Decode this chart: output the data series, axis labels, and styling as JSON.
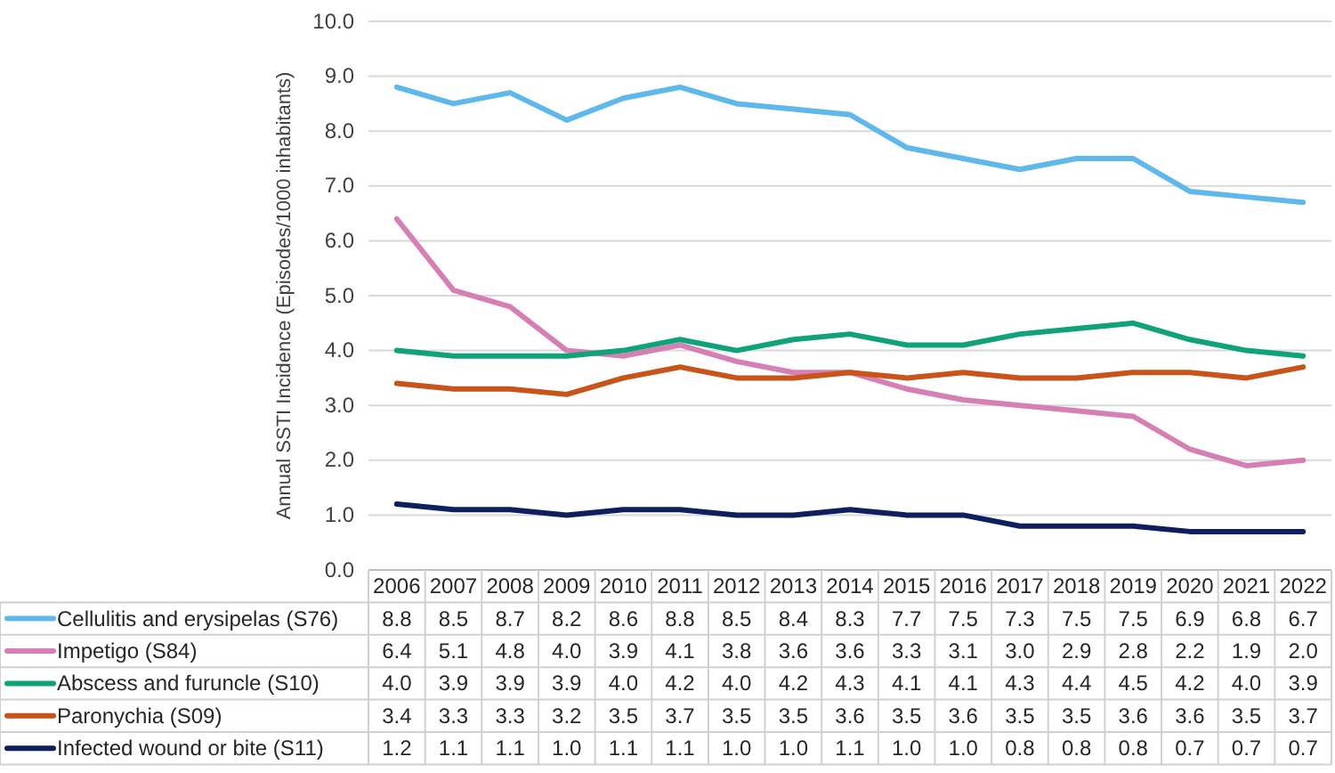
{
  "chart_data": {
    "type": "line",
    "ylabel": "Annual SSTI Incidence (Episodes/1000 inhabitants)",
    "categories": [
      "2006",
      "2007",
      "2008",
      "2009",
      "2010",
      "2011",
      "2012",
      "2013",
      "2014",
      "2015",
      "2016",
      "2017",
      "2018",
      "2019",
      "2020",
      "2021",
      "2022"
    ],
    "ylim": [
      0,
      10
    ],
    "yticks": [
      {
        "value": 0,
        "label": "0.0"
      },
      {
        "value": 1,
        "label": "1.0"
      },
      {
        "value": 2,
        "label": "2.0"
      },
      {
        "value": 3,
        "label": "3.0"
      },
      {
        "value": 4,
        "label": "4.0"
      },
      {
        "value": 5,
        "label": "5.0"
      },
      {
        "value": 6,
        "label": "6.0"
      },
      {
        "value": 7,
        "label": "7.0"
      },
      {
        "value": 8,
        "label": "8.0"
      },
      {
        "value": 9,
        "label": "9.0"
      },
      {
        "value": 10,
        "label": "10.0"
      }
    ],
    "grid": "y",
    "legend": "bottom",
    "line_style": "solid",
    "marker": "none",
    "series": [
      {
        "name": "Cellulitis and erysipelas (S76)",
        "color": "#5eb8ec",
        "values": [
          8.8,
          8.5,
          8.7,
          8.2,
          8.6,
          8.8,
          8.5,
          8.4,
          8.3,
          7.7,
          7.5,
          7.3,
          7.5,
          7.5,
          6.9,
          6.8,
          6.7
        ],
        "value_labels": [
          "8.8",
          "8.5",
          "8.7",
          "8.2",
          "8.6",
          "8.8",
          "8.5",
          "8.4",
          "8.3",
          "7.7",
          "7.5",
          "7.3",
          "7.5",
          "7.5",
          "6.9",
          "6.8",
          "6.7"
        ]
      },
      {
        "name": "Impetigo (S84)",
        "color": "#d67fb4",
        "values": [
          6.4,
          5.1,
          4.8,
          4.0,
          3.9,
          4.1,
          3.8,
          3.6,
          3.6,
          3.3,
          3.1,
          3.0,
          2.9,
          2.8,
          2.2,
          1.9,
          2.0
        ],
        "value_labels": [
          "6.4",
          "5.1",
          "4.8",
          "4.0",
          "3.9",
          "4.1",
          "3.8",
          "3.6",
          "3.6",
          "3.3",
          "3.1",
          "3.0",
          "2.9",
          "2.8",
          "2.2",
          "1.9",
          "2.0"
        ]
      },
      {
        "name": "Abscess and furuncle (S10)",
        "color": "#10a37a",
        "values": [
          4.0,
          3.9,
          3.9,
          3.9,
          4.0,
          4.2,
          4.0,
          4.2,
          4.3,
          4.1,
          4.1,
          4.3,
          4.4,
          4.5,
          4.2,
          4.0,
          3.9
        ],
        "value_labels": [
          "4.0",
          "3.9",
          "3.9",
          "3.9",
          "4.0",
          "4.2",
          "4.0",
          "4.2",
          "4.3",
          "4.1",
          "4.1",
          "4.3",
          "4.4",
          "4.5",
          "4.2",
          "4.0",
          "3.9"
        ]
      },
      {
        "name": "Paronychia (S09)",
        "color": "#c9541a",
        "values": [
          3.4,
          3.3,
          3.3,
          3.2,
          3.5,
          3.7,
          3.5,
          3.5,
          3.6,
          3.5,
          3.6,
          3.5,
          3.5,
          3.6,
          3.6,
          3.5,
          3.7
        ],
        "value_labels": [
          "3.4",
          "3.3",
          "3.3",
          "3.2",
          "3.5",
          "3.7",
          "3.5",
          "3.5",
          "3.6",
          "3.5",
          "3.6",
          "3.5",
          "3.5",
          "3.6",
          "3.6",
          "3.5",
          "3.7"
        ]
      },
      {
        "name": "Infected wound or bite (S11)",
        "color": "#0d1f5e",
        "values": [
          1.2,
          1.1,
          1.1,
          1.0,
          1.1,
          1.1,
          1.0,
          1.0,
          1.1,
          1.0,
          1.0,
          0.8,
          0.8,
          0.8,
          0.7,
          0.7,
          0.7
        ],
        "value_labels": [
          "1.2",
          "1.1",
          "1.1",
          "1.0",
          "1.1",
          "1.1",
          "1.0",
          "1.0",
          "1.1",
          "1.0",
          "1.0",
          "0.8",
          "0.8",
          "0.8",
          "0.7",
          "0.7",
          "0.7"
        ]
      }
    ]
  }
}
